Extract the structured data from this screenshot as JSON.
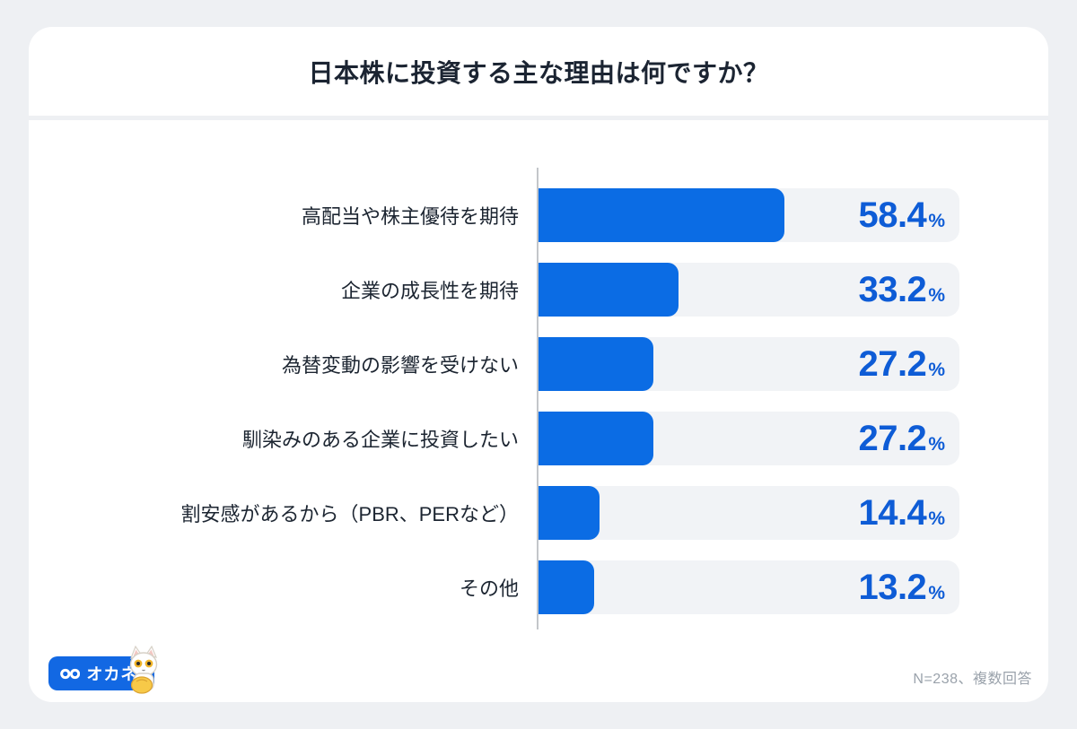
{
  "header": {
    "title": "日本株に投資する主な理由は何ですか？"
  },
  "chart_data": {
    "type": "bar",
    "orientation": "horizontal",
    "title": "日本株に投資する主な理由は何ですか？",
    "categories": [
      "高配当や株主優待を期待",
      "企業の成長性を期待",
      "為替変動の影響を受けない",
      "馴染みのある企業に投資したい",
      "割安感があるから（PBR、PERなど）",
      "その他"
    ],
    "values": [
      58.4,
      33.2,
      27.2,
      27.2,
      14.4,
      13.2
    ],
    "unit": "%",
    "xlim": [
      0,
      100
    ],
    "grid": false,
    "legend": false,
    "bar_color": "#0b6ce4",
    "track_color": "#f1f3f6",
    "value_color": "#0e5cd6"
  },
  "footer": {
    "logo": {
      "text": "オカネコ",
      "icon": "goggles-icon",
      "mascot": "cat-mascot",
      "background": "#1268e3"
    },
    "note": "N=238、複数回答"
  }
}
